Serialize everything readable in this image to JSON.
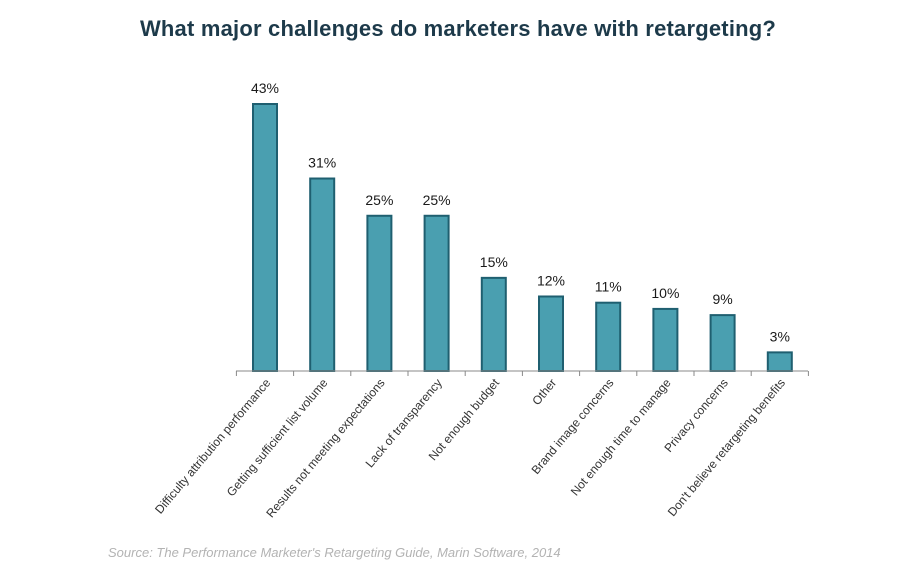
{
  "chart_data": {
    "type": "bar",
    "title": "What major challenges do marketers have with retargeting?",
    "categories": [
      "Difficulty attribution performance",
      "Getting sufficient list volume",
      "Results not meeting expectations",
      "Lack of transparency",
      "Not enough budget",
      "Other",
      "Brand image concerns",
      "Not enough time to manage",
      "Privacy concerns",
      "Don't believe retargeting benefits"
    ],
    "values": [
      43,
      31,
      25,
      25,
      15,
      12,
      11,
      10,
      9,
      3
    ],
    "value_labels": [
      "43%",
      "31%",
      "25%",
      "25%",
      "15%",
      "12%",
      "11%",
      "10%",
      "9%",
      "3%"
    ],
    "ylim": [
      0,
      43
    ],
    "grid": false,
    "xlabel": "",
    "ylabel": "",
    "bar_fill": "#4a9fb0",
    "bar_stroke": "#1f5f70",
    "axis_color": "#888888"
  },
  "source": "Source: The Performance Marketer's Retargeting Guide, Marin Software, 2014"
}
